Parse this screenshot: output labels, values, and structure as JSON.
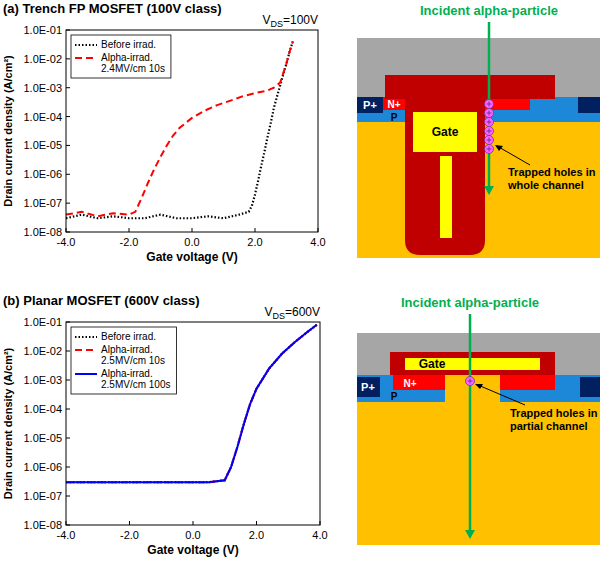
{
  "chart_data": [
    {
      "type": "line",
      "title": "(a) Trench FP MOSFET (100V class)",
      "annotation": {
        "text": "V",
        "subscript": "DS",
        "suffix": "=100V"
      },
      "x_label": "Gate voltage (V)",
      "y_label": "Drain current density (A/cm²)",
      "log": "y",
      "grid": false,
      "legend": "upper left",
      "xlim": [
        -4,
        4
      ],
      "ylim": [
        1e-08,
        0.1
      ],
      "xticks": [
        {
          "value": -4,
          "label": "-4.0"
        },
        {
          "value": -2,
          "label": "-2.0"
        },
        {
          "value": 0,
          "label": "0.0"
        },
        {
          "value": 2,
          "label": "2.0"
        },
        {
          "value": 4,
          "label": "4.0"
        }
      ],
      "yticks": [
        {
          "value": 1e-08,
          "label": "1.0E-08"
        },
        {
          "value": 1e-07,
          "label": "1.0E-07"
        },
        {
          "value": 1e-06,
          "label": "1.0E-06"
        },
        {
          "value": 1e-05,
          "label": "1.0E-05"
        },
        {
          "value": 0.0001,
          "label": "1.0E-04"
        },
        {
          "value": 0.001,
          "label": "1.0E-03"
        },
        {
          "value": 0.01,
          "label": "1.0E-02"
        },
        {
          "value": 0.1,
          "label": "1.0E-01"
        }
      ],
      "series": [
        {
          "name": "Before irrad.",
          "color": "#000000",
          "line_style": "dotted",
          "x": [
            -4,
            -3.5,
            -3,
            -2.5,
            -2,
            -1.5,
            -1,
            -0.5,
            0,
            0.5,
            1,
            1.5,
            1.8,
            1.9,
            2.0,
            2.1,
            2.2,
            2.3,
            2.4,
            2.5,
            2.6,
            2.7,
            2.8,
            2.9,
            3.0,
            3.1,
            3.2
          ],
          "values": [
            3e-08,
            4e-08,
            3e-08,
            3.5e-08,
            3e-08,
            3e-08,
            4e-08,
            3e-08,
            3e-08,
            3.5e-08,
            3e-08,
            4e-08,
            5e-08,
            8e-08,
            2e-07,
            6e-07,
            2e-06,
            6e-06,
            2e-05,
            6e-05,
            0.0002,
            0.0005,
            0.0012,
            0.003,
            0.007,
            0.018,
            0.04
          ]
        },
        {
          "name": "Alpha-irrad. 2.4MV/cm 10s",
          "color": "#ff0000",
          "line_style": "dashed",
          "x": [
            -4,
            -3.5,
            -3,
            -2.5,
            -2,
            -1.8,
            -1.6,
            -1.4,
            -1.2,
            -1.0,
            -0.8,
            -0.6,
            -0.4,
            -0.2,
            0,
            0.4,
            0.8,
            1.2,
            1.6,
            2.0,
            2.4,
            2.6,
            2.8,
            3.0,
            3.1,
            3.2
          ],
          "values": [
            4e-08,
            5e-08,
            3.5e-08,
            4.5e-08,
            4e-08,
            5e-08,
            1.5e-07,
            5e-07,
            1.5e-06,
            4e-06,
            1e-05,
            2.2e-05,
            4e-05,
            6e-05,
            9e-05,
            0.00016,
            0.00025,
            0.00035,
            0.0005,
            0.00065,
            0.0008,
            0.001,
            0.0015,
            0.007,
            0.018,
            0.04
          ]
        }
      ]
    },
    {
      "type": "line",
      "title": "(b) Planar MOSFET (600V class)",
      "annotation": {
        "text": "V",
        "subscript": "DS",
        "suffix": "=600V"
      },
      "x_label": "Gate voltage (V)",
      "y_label": "Drain current density (A/cm²)",
      "log": "y",
      "grid": false,
      "legend": "upper left",
      "xlim": [
        -4,
        4
      ],
      "ylim": [
        1e-08,
        0.1
      ],
      "xticks": [
        {
          "value": -4,
          "label": "-4.0"
        },
        {
          "value": -2,
          "label": "-2.0"
        },
        {
          "value": 0,
          "label": "0.0"
        },
        {
          "value": 2,
          "label": "2.0"
        },
        {
          "value": 4,
          "label": "4.0"
        }
      ],
      "yticks": [
        {
          "value": 1e-08,
          "label": "1.0E-08"
        },
        {
          "value": 1e-07,
          "label": "1.0E-07"
        },
        {
          "value": 1e-06,
          "label": "1.0E-06"
        },
        {
          "value": 1e-05,
          "label": "1.0E-05"
        },
        {
          "value": 0.0001,
          "label": "1.0E-04"
        },
        {
          "value": 0.001,
          "label": "1.0E-03"
        },
        {
          "value": 0.01,
          "label": "1.0E-02"
        },
        {
          "value": 0.1,
          "label": "1.0E-01"
        }
      ],
      "series": [
        {
          "name": "Before irrad.",
          "color": "#000000",
          "line_style": "dotted",
          "x": [
            -4,
            -3,
            -2,
            -1,
            0,
            0.5,
            1.0,
            1.2,
            1.4,
            1.6,
            1.8,
            2.0,
            2.4,
            2.8,
            3.2,
            3.6,
            3.9
          ],
          "values": [
            3e-07,
            3e-07,
            3e-07,
            3e-07,
            3e-07,
            3e-07,
            3.5e-07,
            1e-06,
            5e-06,
            3e-05,
            0.00015,
            0.0005,
            0.0025,
            0.008,
            0.02,
            0.045,
            0.08
          ]
        },
        {
          "name": "Alpha-irrad. 2.5MV/cm 10s",
          "color": "#ff0000",
          "line_style": "dashed",
          "x": [
            -4,
            -3,
            -2,
            -1,
            0,
            0.5,
            1.0,
            1.2,
            1.4,
            1.6,
            1.8,
            2.0,
            2.4,
            2.8,
            3.2,
            3.6,
            3.9
          ],
          "values": [
            3e-07,
            3e-07,
            3e-07,
            3e-07,
            3e-07,
            3e-07,
            3.5e-07,
            1e-06,
            5e-06,
            3e-05,
            0.00015,
            0.0005,
            0.0025,
            0.008,
            0.02,
            0.045,
            0.08
          ]
        },
        {
          "name": "Alpha-irrad. 2.5MV/cm 100s",
          "color": "#0000ff",
          "line_style": "solid",
          "x": [
            -4,
            -3,
            -2,
            -1,
            0,
            0.5,
            1.0,
            1.2,
            1.4,
            1.6,
            1.8,
            2.0,
            2.4,
            2.8,
            3.2,
            3.6,
            3.9
          ],
          "values": [
            3e-07,
            3e-07,
            3e-07,
            3e-07,
            3e-07,
            3e-07,
            3.5e-07,
            1e-06,
            5e-06,
            3e-05,
            0.00015,
            0.0005,
            0.0025,
            0.008,
            0.02,
            0.045,
            0.08
          ]
        }
      ]
    }
  ],
  "diagrams": [
    {
      "arrow_label": "Incident alpha-particle",
      "region_labels": [
        "P+",
        "N+",
        "P",
        "Gate"
      ],
      "callout": "Trapped holes in whole channel"
    },
    {
      "arrow_label": "Incident alpha-particle",
      "region_labels": [
        "P+",
        "N+",
        "P",
        "Gate"
      ],
      "callout": "Trapped holes in partial channel"
    }
  ]
}
